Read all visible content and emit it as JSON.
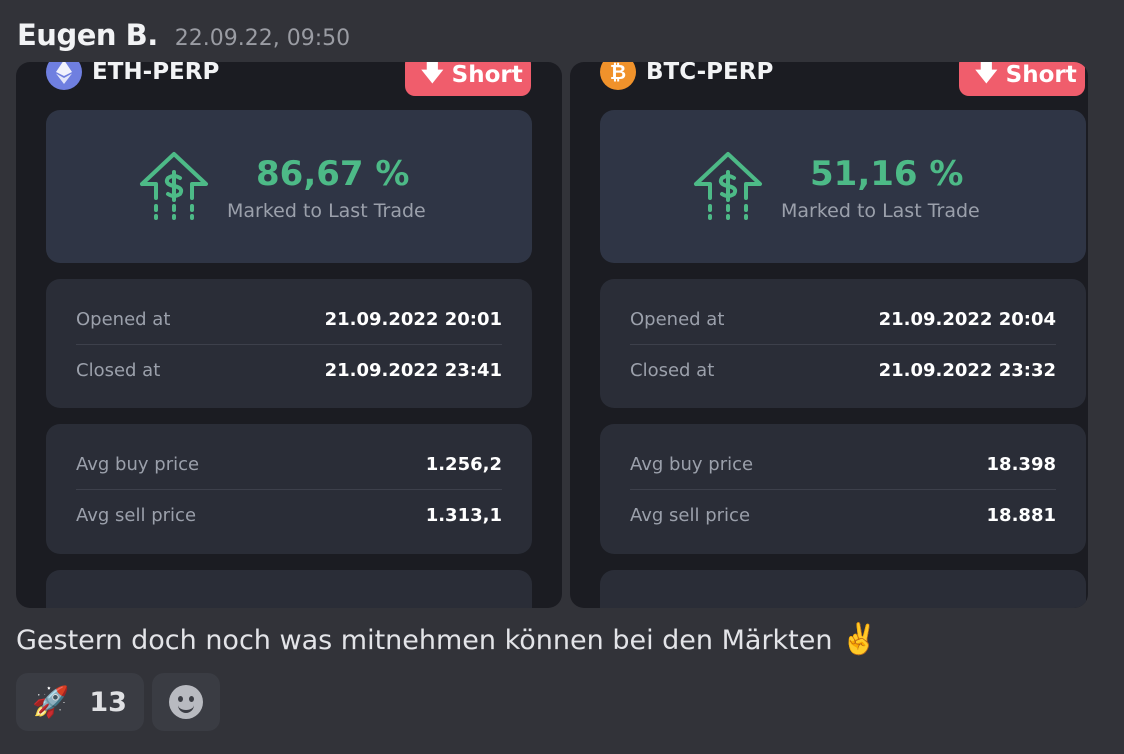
{
  "message": {
    "author": "Eugen B.",
    "timestamp": "22.09.22, 09:50",
    "text": "Gestern doch noch was mitnehmen können bei den Märkten",
    "text_emoji": "✌️"
  },
  "cards": [
    {
      "pair": "ETH-PERP",
      "coin_icon": "ethereum-icon",
      "side": "Short",
      "pnl_value": "86,67 %",
      "pnl_label": "Marked to Last Trade",
      "opened_label": "Opened at",
      "opened_value": "21.09.2022 20:01",
      "closed_label": "Closed at",
      "closed_value": "21.09.2022 23:41",
      "avg_buy_label": "Avg buy price",
      "avg_buy_value": "1.256,2",
      "avg_sell_label": "Avg sell price",
      "avg_sell_value": "1.313,1"
    },
    {
      "pair": "BTC-PERP",
      "coin_icon": "bitcoin-icon",
      "side": "Short",
      "pnl_value": "51,16 %",
      "pnl_label": "Marked to Last Trade",
      "opened_label": "Opened at",
      "opened_value": "21.09.2022 20:04",
      "closed_label": "Closed at",
      "closed_value": "21.09.2022 23:32",
      "avg_buy_label": "Avg buy price",
      "avg_buy_value": "18.398",
      "avg_sell_label": "Avg sell price",
      "avg_sell_value": "18.881"
    }
  ],
  "reactions": [
    {
      "emoji": "🚀",
      "count": "13"
    }
  ],
  "colors": {
    "background": "#323339",
    "card": "#1b1c22",
    "profit_green": "#4dba87",
    "short_red": "#f05d6c"
  }
}
